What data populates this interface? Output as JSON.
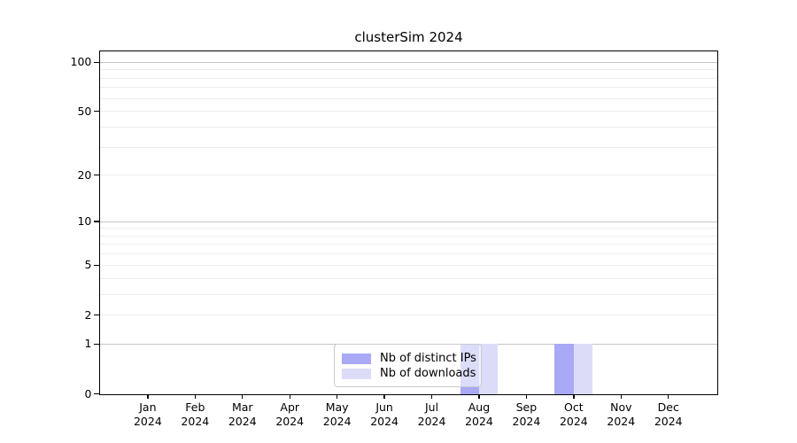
{
  "chart_data": {
    "type": "bar",
    "title": "clusterSim 2024",
    "months": [
      "Jan",
      "Feb",
      "Mar",
      "Apr",
      "May",
      "Jun",
      "Jul",
      "Aug",
      "Sep",
      "Oct",
      "Nov",
      "Dec"
    ],
    "year": "2024",
    "series": [
      {
        "name": "Nb of distinct IPs",
        "color": "#a9a9f6",
        "values": [
          0,
          0,
          0,
          0,
          0,
          0,
          0,
          1,
          0,
          1,
          0,
          0
        ]
      },
      {
        "name": "Nb of downloads",
        "color": "#dcdcf9",
        "values": [
          0,
          0,
          0,
          0,
          0,
          0,
          0,
          1,
          0,
          1,
          0,
          0
        ]
      }
    ],
    "yscale": "log1p",
    "ylim": [
      0,
      117
    ],
    "y_tick_values": [
      0,
      1,
      2,
      5,
      10,
      20,
      50,
      100
    ],
    "major_gridlines": [
      1,
      10,
      100
    ],
    "minor_gridlines": [
      2,
      3,
      4,
      5,
      6,
      7,
      8,
      9,
      20,
      30,
      40,
      50,
      60,
      70,
      80,
      90
    ],
    "legend_position": "lower-center",
    "colors": {
      "major_grid": "#c4c4c4",
      "minor_grid": "#ededed",
      "axis": "#000000",
      "text": "#000000"
    }
  }
}
